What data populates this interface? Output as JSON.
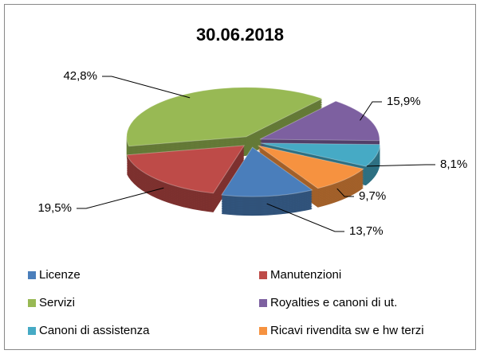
{
  "chart_data": {
    "type": "pie",
    "title": "30.06.2018",
    "categories": [
      "Licenze",
      "Manutenzioni",
      "Servizi",
      "Royalties e canoni di ut.",
      "Canoni di assistenza",
      "Ricavi rivendita sw e hw terzi"
    ],
    "values": [
      13.7,
      19.5,
      42.8,
      15.9,
      8.1,
      9.7
    ],
    "value_labels": [
      "13,7%",
      "19,5%",
      "42,8%",
      "15,9%",
      "8,1%",
      "9,7%"
    ],
    "colors": [
      "#4a7ebb",
      "#be4b48",
      "#98b954",
      "#7d60a0",
      "#46aac5",
      "#f69240"
    ],
    "legend": "bottom"
  }
}
